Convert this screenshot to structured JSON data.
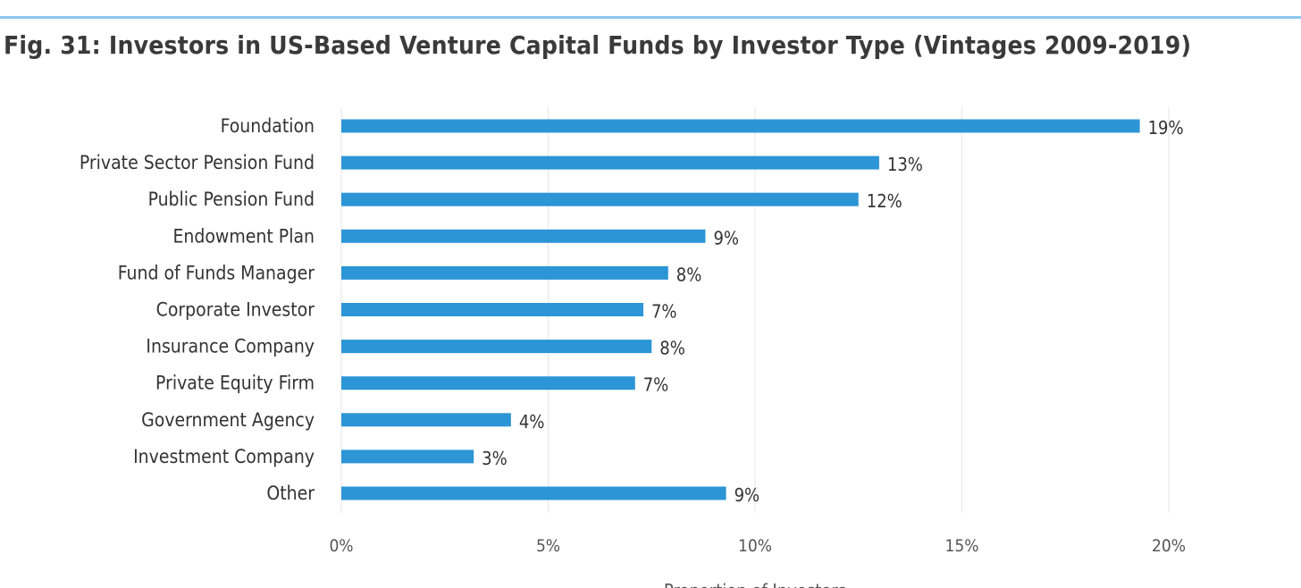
{
  "title": "Fig. 31: Investors in US-Based Venture Capital Funds by Investor Type (Vintages 2009-2019)",
  "colors": {
    "bar": "#2b95d6",
    "rule": "#8cc8ec",
    "grid": "#e6e6e6"
  },
  "chart_data": {
    "type": "bar",
    "orientation": "horizontal",
    "title": "Fig. 31: Investors in US-Based Venture Capital Funds by Investor Type (Vintages 2009-2019)",
    "categories": [
      "Foundation",
      "Private Sector Pension Fund",
      "Public Pension Fund",
      "Endowment Plan",
      "Fund of Funds Manager",
      "Corporate Investor",
      "Insurance Company",
      "Private Equity Firm",
      "Government Agency",
      "Investment Company",
      "Other"
    ],
    "values": [
      19.3,
      13.0,
      12.5,
      8.8,
      7.9,
      7.3,
      7.5,
      7.1,
      4.1,
      3.2,
      9.3
    ],
    "data_labels": [
      "19%",
      "13%",
      "12%",
      "9%",
      "8%",
      "7%",
      "8%",
      "7%",
      "4%",
      "3%",
      "9%"
    ],
    "xlim": [
      0,
      20
    ],
    "x_ticks": [
      0,
      5,
      10,
      15,
      20
    ],
    "x_tick_labels": [
      "0%",
      "5%",
      "10%",
      "15%",
      "20%"
    ],
    "xlabel": "Proportion of Investors",
    "ylabel": "",
    "grid": true,
    "legend": "none"
  }
}
